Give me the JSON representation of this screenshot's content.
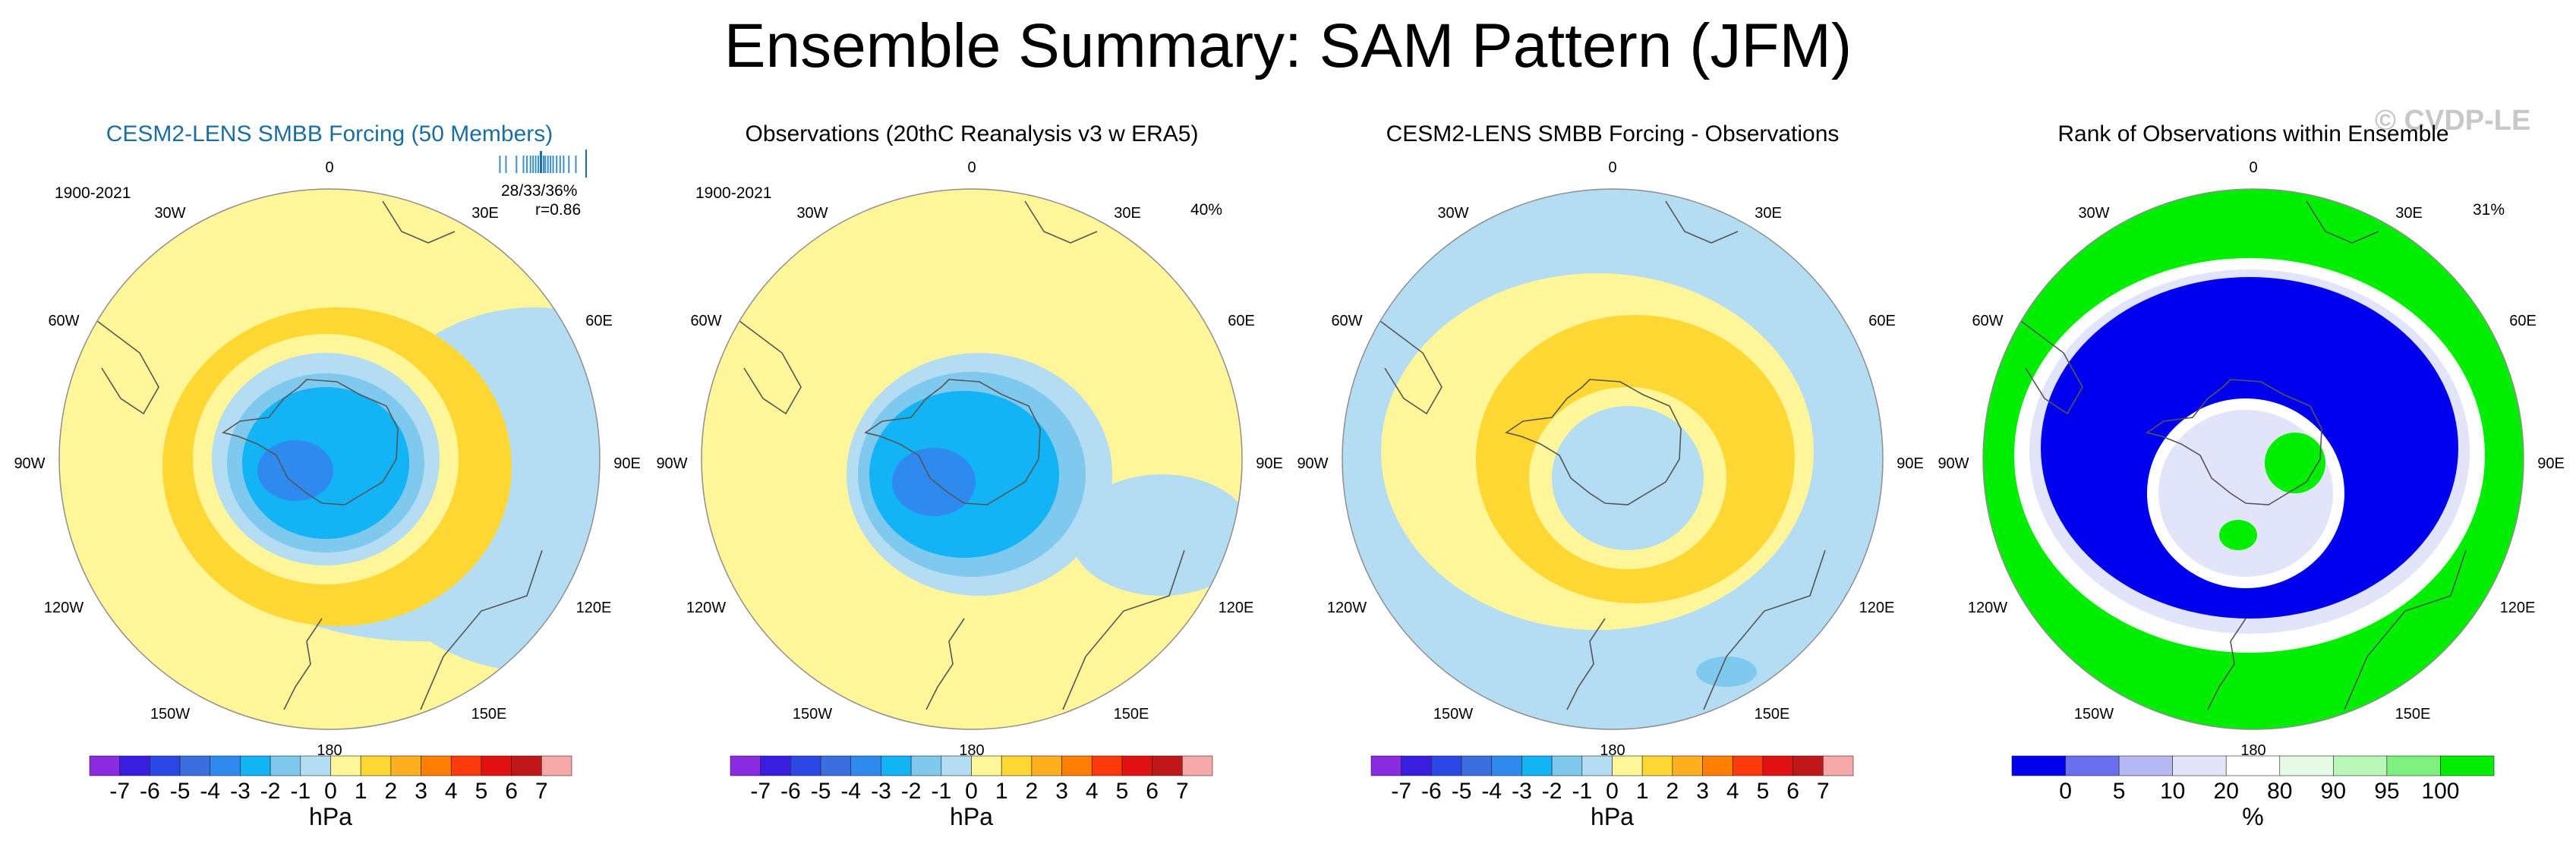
{
  "title": "Ensemble Summary: SAM Pattern (JFM)",
  "watermark": "© CVDP-LE",
  "panels": [
    {
      "title": "CESM2-LENS SMBB Forcing (50 Members)",
      "title_color": "#1a6fa0",
      "period": "1900-2021",
      "stat_line1": "28/33/36%",
      "stat_line2": "r=0.86",
      "percent": ""
    },
    {
      "title": "Observations (20thC Reanalysis v3 w ERA5)",
      "title_color": "#000000",
      "period": "1900-2021",
      "stat_line1": "",
      "stat_line2": "",
      "percent": "40%"
    },
    {
      "title": "CESM2-LENS SMBB Forcing - Observations",
      "title_color": "#000000",
      "period": "",
      "stat_line1": "",
      "stat_line2": "",
      "percent": ""
    },
    {
      "title": "Rank of Observations within Ensemble",
      "title_color": "#000000",
      "period": "",
      "stat_line1": "",
      "stat_line2": "",
      "percent": "31%"
    }
  ],
  "longitude_labels": {
    "n0": "0",
    "n30e": "30E",
    "n60e": "60E",
    "n90e": "90E",
    "n120e": "120E",
    "n150e": "150E",
    "n180": "180",
    "n150w": "150W",
    "n120w": "120W",
    "n90w": "90W",
    "n60w": "60W",
    "n30w": "30W"
  },
  "colorbar_hpa": {
    "unit": "hPa",
    "ticks": [
      "-7",
      "-6",
      "-5",
      "-4",
      "-3",
      "-2",
      "-1",
      "0",
      "1",
      "2",
      "3",
      "4",
      "5",
      "6",
      "7"
    ],
    "colors": [
      "#8a2be2",
      "#3a1ee0",
      "#2b47e6",
      "#3b6fe0",
      "#2f8af0",
      "#13b4f6",
      "#7fc8ee",
      "#b4dcf2",
      "#fff599",
      "#ffd733",
      "#ffb01f",
      "#ff7f00",
      "#ff3a0a",
      "#e31212",
      "#c01818",
      "#f7a9a9"
    ]
  },
  "colorbar_rank": {
    "unit": "%",
    "ticks": [
      "0",
      "5",
      "10",
      "20",
      "80",
      "90",
      "95",
      "100"
    ],
    "colors": [
      "#0000ee",
      "#6a6ef0",
      "#b6b8f2",
      "#e2e4fa",
      "#ffffff",
      "#e5fbe5",
      "#b9f7b9",
      "#7ef07e",
      "#00ee00"
    ]
  },
  "colors": {
    "yellow": "#fff599",
    "gold": "#ffd733",
    "pale_blue": "#b4dcf2",
    "mid_blue": "#7fc8ee",
    "cyan": "#13b4f6",
    "deep_cyan": "#2f8af0",
    "rank_blue": "#0000ee",
    "rank_green": "#00ee00",
    "coast": "#555555"
  },
  "ensemble_strip": {
    "values": [
      0.03,
      0.1,
      0.22,
      0.3,
      0.34,
      0.38,
      0.41,
      0.44,
      0.47,
      0.5,
      0.53,
      0.55,
      0.58,
      0.61,
      0.64,
      0.68,
      0.72,
      0.76,
      0.82,
      0.9
    ],
    "highlight_index": 9
  }
}
